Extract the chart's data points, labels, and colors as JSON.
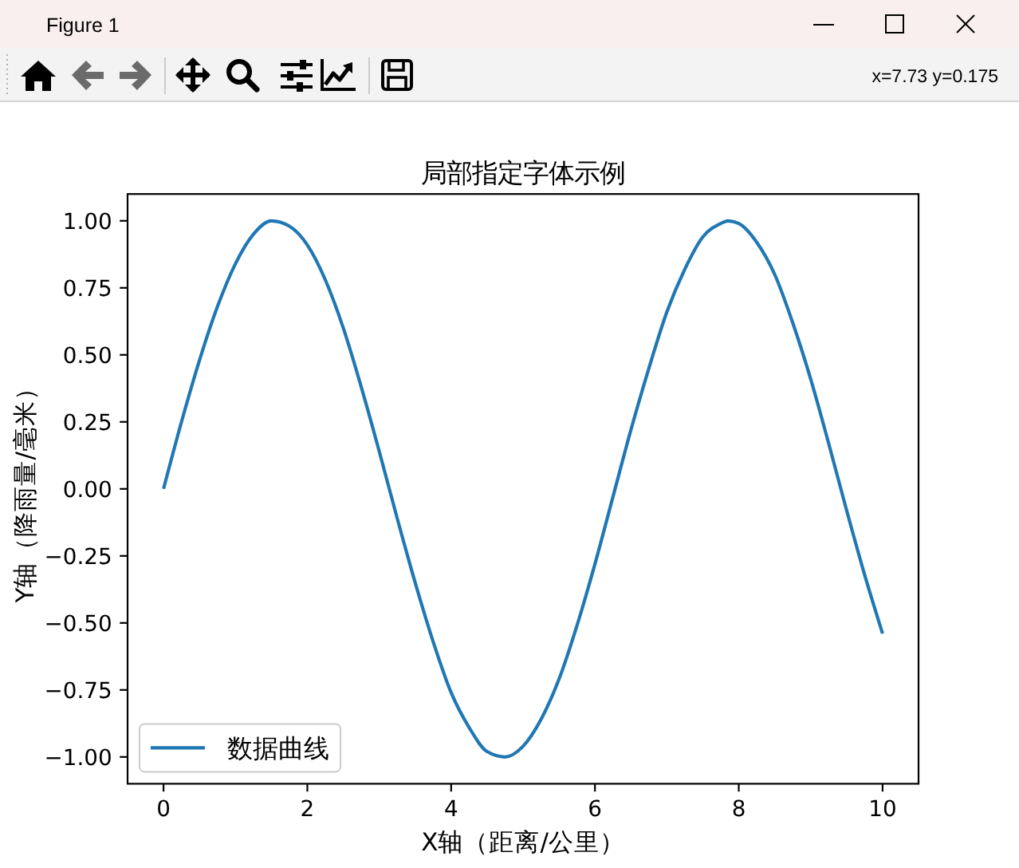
{
  "chart_data": {
    "type": "line",
    "title": "局部指定字体示例",
    "xlabel": "X轴（距离/公里）",
    "ylabel": "Y轴（降雨量/毫米）",
    "annotations": [
      "Figure 1",
      "x=7.73 y=0.175"
    ],
    "series": [
      {
        "name": "数据曲线",
        "color": "#1f77b4",
        "x": [
          0,
          0.25,
          0.5,
          0.75,
          1,
          1.25,
          1.5,
          1.75,
          2,
          2.25,
          2.5,
          2.75,
          3,
          3.25,
          3.5,
          3.75,
          4,
          4.25,
          4.5,
          4.75,
          5,
          5.25,
          5.5,
          5.75,
          6,
          6.25,
          6.5,
          6.75,
          7,
          7.25,
          7.5,
          7.75,
          7.85,
          8,
          8.25,
          8.5,
          8.75,
          9,
          9.25,
          9.5,
          9.75,
          10
        ],
        "values": [
          0,
          0.25,
          0.48,
          0.68,
          0.84,
          0.95,
          1.0,
          0.98,
          0.91,
          0.78,
          0.6,
          0.38,
          0.14,
          -0.11,
          -0.35,
          -0.57,
          -0.76,
          -0.89,
          -0.98,
          -1.0,
          -0.96,
          -0.86,
          -0.71,
          -0.51,
          -0.28,
          -0.03,
          0.22,
          0.45,
          0.66,
          0.82,
          0.94,
          0.99,
          1.0,
          0.99,
          0.92,
          0.8,
          0.62,
          0.41,
          0.17,
          -0.08,
          -0.32,
          -0.54
        ]
      }
    ],
    "xlim": [
      -0.5,
      10.5
    ],
    "ylim": [
      -1.1,
      1.1
    ],
    "xticks": [
      0,
      2,
      4,
      6,
      8,
      10
    ],
    "yticks": [
      {
        "value": -1,
        "label": "−1.00"
      },
      {
        "value": -0.75,
        "label": "−0.75"
      },
      {
        "value": -0.5,
        "label": "−0.50"
      },
      {
        "value": -0.25,
        "label": "−0.25"
      },
      {
        "value": 0,
        "label": "0.00"
      },
      {
        "value": 0.25,
        "label": "0.25"
      },
      {
        "value": 0.5,
        "label": "0.50"
      },
      {
        "value": 0.75,
        "label": "0.75"
      },
      {
        "value": 1,
        "label": "1.00"
      }
    ],
    "legend": "bottom left",
    "grid": false,
    "line_style": "solid"
  }
}
